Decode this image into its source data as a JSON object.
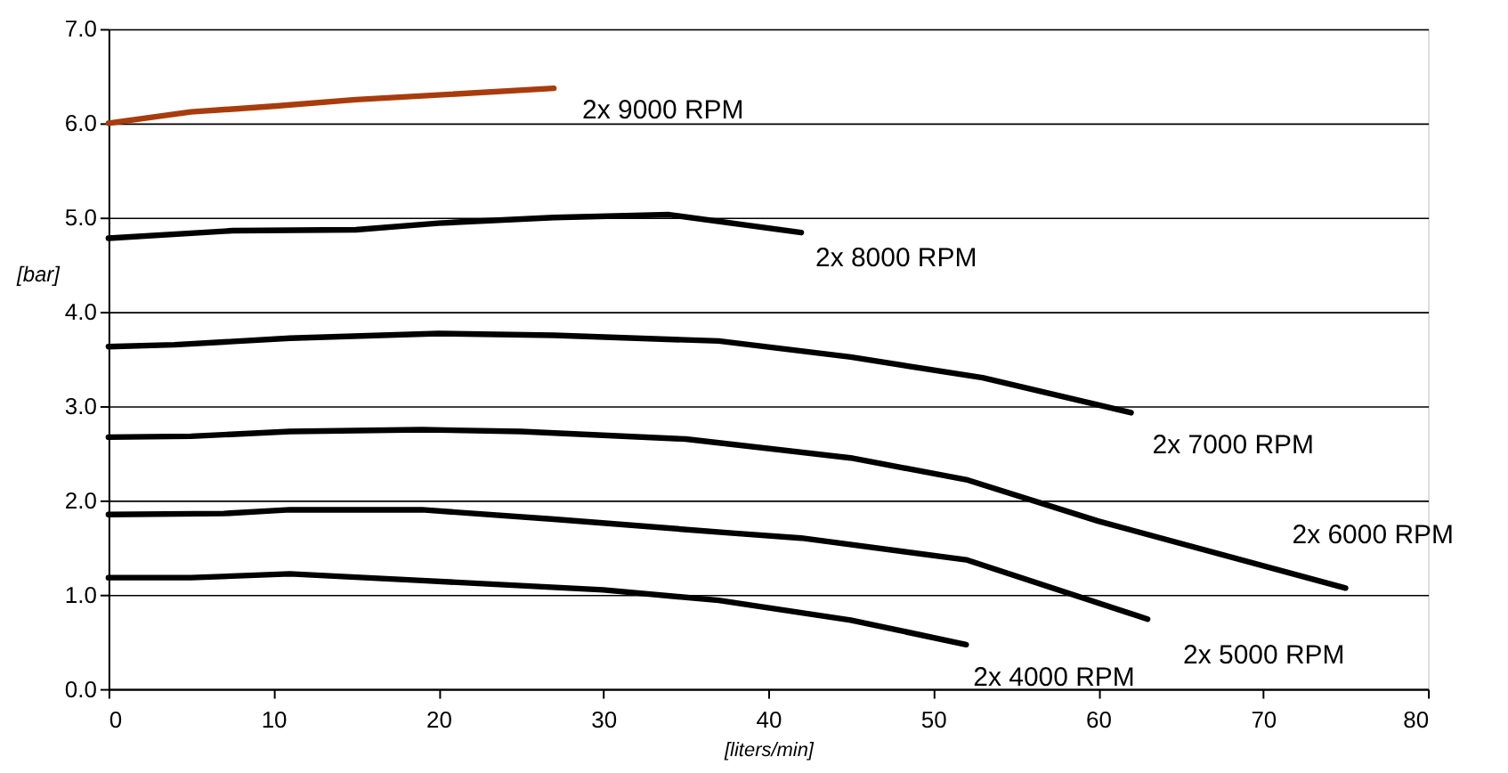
{
  "chart_data": {
    "type": "line",
    "xlabel": "[liters/min]",
    "ylabel": "[bar]",
    "xlim": [
      0,
      80
    ],
    "xticks": [
      0,
      10,
      20,
      30,
      40,
      50,
      60,
      70,
      80
    ],
    "ylim": [
      0,
      7
    ],
    "yticks": [
      {
        "value": 0,
        "label": "0.0"
      },
      {
        "value": 1,
        "label": "1.0"
      },
      {
        "value": 2,
        "label": "2.0"
      },
      {
        "value": 3,
        "label": "3.0"
      },
      {
        "value": 4,
        "label": "4.0"
      },
      {
        "value": 5,
        "label": "5.0"
      },
      {
        "value": 6,
        "label": "6.0"
      },
      {
        "value": 7,
        "label": "7.0"
      }
    ],
    "grid": "y",
    "marker": "none",
    "line_style": "solid",
    "series": [
      {
        "name": "2x 9000 RPM",
        "color": "#a83c0c",
        "x": [
          0,
          5,
          10,
          15,
          20,
          27
        ],
        "values": [
          6.0,
          6.12,
          6.18,
          6.25,
          6.3,
          6.37
        ]
      },
      {
        "name": "2x 8000 RPM",
        "color": "#000000",
        "x": [
          0,
          7.5,
          15,
          20,
          27,
          34,
          42
        ],
        "values": [
          4.78,
          4.86,
          4.87,
          4.94,
          5.0,
          5.03,
          4.84
        ]
      },
      {
        "name": "2x 7000 RPM",
        "color": "#000000",
        "x": [
          0,
          4,
          11,
          20,
          27,
          37,
          45,
          53,
          62
        ],
        "values": [
          3.63,
          3.65,
          3.72,
          3.77,
          3.75,
          3.69,
          3.52,
          3.3,
          2.93
        ]
      },
      {
        "name": "2x 6000 RPM",
        "color": "#000000",
        "x": [
          0,
          5,
          11,
          19,
          25,
          35,
          45,
          52,
          60,
          75
        ],
        "values": [
          2.67,
          2.68,
          2.73,
          2.75,
          2.73,
          2.65,
          2.45,
          2.22,
          1.78,
          1.07
        ]
      },
      {
        "name": "2x 5000 RPM",
        "color": "#000000",
        "x": [
          0,
          7,
          11,
          19,
          27,
          38,
          42,
          52,
          63
        ],
        "values": [
          1.85,
          1.86,
          1.9,
          1.9,
          1.8,
          1.65,
          1.6,
          1.37,
          0.74
        ]
      },
      {
        "name": "2x 4000 RPM",
        "color": "#000000",
        "x": [
          0,
          5,
          11,
          19,
          30,
          37,
          45,
          52
        ],
        "values": [
          1.18,
          1.18,
          1.22,
          1.15,
          1.05,
          0.94,
          0.73,
          0.47
        ]
      }
    ]
  }
}
